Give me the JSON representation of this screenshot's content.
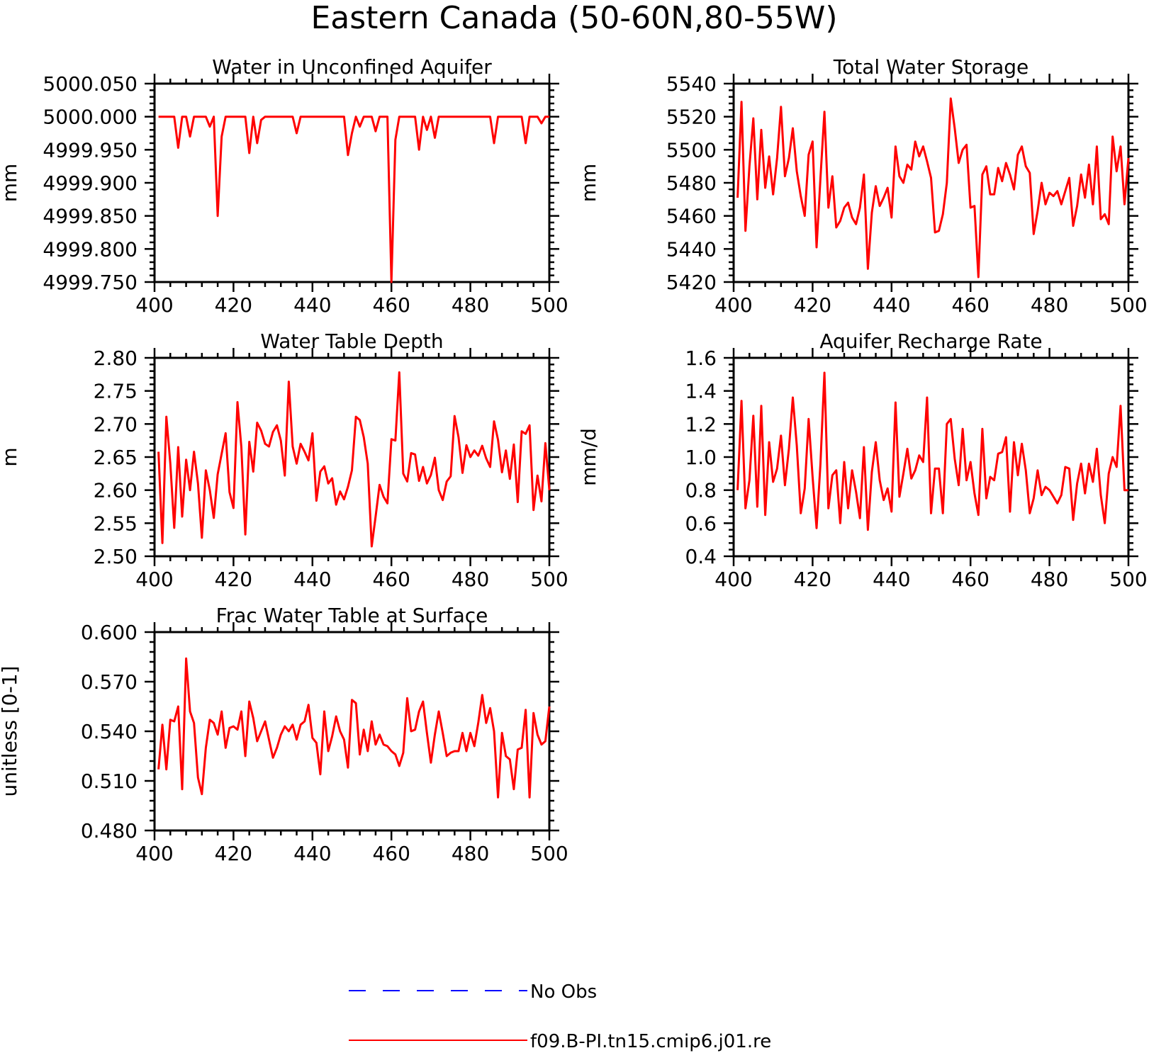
{
  "figure": {
    "title": "Eastern Canada (50-60N,80-55W)"
  },
  "legend": {
    "entries": [
      {
        "label": "No Obs",
        "color": "#0000ff",
        "style": "dashed"
      },
      {
        "label": "f09.B-PI.tn15.cmip6.j01.re",
        "color": "#ff0000",
        "style": "solid"
      }
    ]
  },
  "chart_data": [
    {
      "type": "line",
      "title": "Water in Unconfined Aquifer",
      "xlabel": "",
      "ylabel": "mm",
      "xlim": [
        400,
        500
      ],
      "ylim": [
        4999.75,
        5000.05
      ],
      "xticks": [
        "400",
        "420",
        "440",
        "460",
        "480",
        "500"
      ],
      "yticks": [
        "4999.750",
        "4999.800",
        "4999.850",
        "4999.900",
        "4999.950",
        "5000.000",
        "5000.050"
      ],
      "color": "#ff0000",
      "series": [
        {
          "x_start": 401,
          "values": [
            5000,
            5000,
            5000,
            5000,
            5000,
            4999.953,
            5000,
            5000,
            4999.97,
            5000,
            5000,
            5000,
            5000,
            4999.985,
            5000,
            4999.85,
            4999.97,
            5000,
            5000,
            5000,
            5000,
            5000,
            5000,
            4999.945,
            5000,
            4999.96,
            4999.995,
            5000,
            5000,
            5000,
            5000,
            5000,
            5000,
            5000,
            5000,
            4999.975,
            5000,
            5000,
            5000,
            5000,
            5000,
            5000,
            5000,
            5000,
            5000,
            5000,
            5000,
            5000,
            4999.942,
            4999.975,
            5000,
            4999.985,
            5000,
            5000,
            5000,
            4999.978,
            5000,
            5000,
            5000,
            4999.75,
            4999.965,
            5000,
            5000,
            5000,
            5000,
            5000,
            4999.95,
            5000,
            4999.98,
            5000,
            4999.968,
            5000,
            5000,
            5000,
            5000,
            5000,
            5000,
            5000,
            5000,
            5000,
            5000,
            5000,
            5000,
            5000,
            5000,
            4999.96,
            5000,
            5000,
            5000,
            5000,
            5000,
            5000,
            5000,
            4999.96,
            5000,
            5000,
            5000,
            4999.99,
            5000,
            5000
          ]
        }
      ]
    },
    {
      "type": "line",
      "title": "Total Water Storage",
      "xlabel": "",
      "ylabel": "mm",
      "xlim": [
        400,
        500
      ],
      "ylim": [
        5420,
        5540
      ],
      "xticks": [
        "400",
        "420",
        "440",
        "460",
        "480",
        "500"
      ],
      "yticks": [
        "5420",
        "5440",
        "5460",
        "5480",
        "5500",
        "5520",
        "5540"
      ],
      "color": "#ff0000",
      "series": [
        {
          "x_start": 401,
          "values": [
            5471,
            5529,
            5451,
            5490,
            5519,
            5470,
            5512,
            5477,
            5496,
            5473,
            5495,
            5526,
            5484,
            5495,
            5513,
            5487,
            5472,
            5460,
            5497,
            5505,
            5441,
            5483,
            5523,
            5465,
            5484,
            5453,
            5457,
            5465,
            5468,
            5459,
            5455,
            5465,
            5485,
            5428,
            5462,
            5478,
            5466,
            5471,
            5477,
            5459,
            5502,
            5484,
            5480,
            5491,
            5488,
            5505,
            5496,
            5502,
            5493,
            5483,
            5450,
            5451,
            5461,
            5480,
            5531,
            5513,
            5492,
            5500,
            5503,
            5465,
            5466,
            5423,
            5485,
            5490,
            5473,
            5473,
            5489,
            5481,
            5492,
            5485,
            5476,
            5497,
            5502,
            5490,
            5486,
            5449,
            5463,
            5480,
            5467,
            5474,
            5472,
            5475,
            5467,
            5475,
            5483,
            5454,
            5466,
            5485,
            5471,
            5491,
            5467,
            5502,
            5458,
            5461,
            5455,
            5508,
            5487,
            5502,
            5467,
            5495
          ]
        }
      ]
    },
    {
      "type": "line",
      "title": "Water Table Depth",
      "xlabel": "",
      "ylabel": "m",
      "xlim": [
        400,
        500
      ],
      "ylim": [
        2.5,
        2.8
      ],
      "xticks": [
        "400",
        "420",
        "440",
        "460",
        "480",
        "500"
      ],
      "yticks": [
        "2.50",
        "2.55",
        "2.60",
        "2.65",
        "2.70",
        "2.75",
        "2.80"
      ],
      "color": "#ff0000",
      "series": [
        {
          "x_start": 401,
          "values": [
            2.658,
            2.52,
            2.711,
            2.64,
            2.543,
            2.665,
            2.56,
            2.646,
            2.6,
            2.658,
            2.61,
            2.528,
            2.63,
            2.6,
            2.558,
            2.624,
            2.655,
            2.686,
            2.597,
            2.573,
            2.733,
            2.665,
            2.533,
            2.673,
            2.628,
            2.702,
            2.69,
            2.67,
            2.666,
            2.688,
            2.698,
            2.675,
            2.622,
            2.764,
            2.666,
            2.64,
            2.67,
            2.658,
            2.645,
            2.686,
            2.584,
            2.628,
            2.636,
            2.61,
            2.618,
            2.578,
            2.598,
            2.586,
            2.605,
            2.63,
            2.711,
            2.706,
            2.68,
            2.64,
            2.515,
            2.56,
            2.608,
            2.59,
            2.58,
            2.677,
            2.675,
            2.778,
            2.625,
            2.613,
            2.656,
            2.654,
            2.614,
            2.635,
            2.61,
            2.623,
            2.649,
            2.6,
            2.585,
            2.613,
            2.621,
            2.712,
            2.68,
            2.626,
            2.668,
            2.65,
            2.66,
            2.652,
            2.667,
            2.648,
            2.635,
            2.704,
            2.676,
            2.627,
            2.66,
            2.617,
            2.669,
            2.582,
            2.689,
            2.685,
            2.698,
            2.57,
            2.622,
            2.583,
            2.671,
            2.6
          ]
        }
      ]
    },
    {
      "type": "line",
      "title": "Aquifer Recharge Rate",
      "xlabel": "",
      "ylabel": "mm/d",
      "xlim": [
        400,
        500
      ],
      "ylim": [
        0.4,
        1.6
      ],
      "xticks": [
        "400",
        "420",
        "440",
        "460",
        "480",
        "500"
      ],
      "yticks": [
        "0.4",
        "0.6",
        "0.8",
        "1.0",
        "1.2",
        "1.4",
        "1.6"
      ],
      "color": "#ff0000",
      "series": [
        {
          "x_start": 401,
          "values": [
            0.8,
            1.34,
            0.69,
            0.86,
            1.25,
            0.7,
            1.31,
            0.65,
            1.09,
            0.85,
            0.93,
            1.13,
            0.83,
            1.05,
            1.36,
            1.07,
            0.66,
            0.81,
            1.23,
            0.88,
            0.57,
            0.96,
            1.51,
            0.69,
            0.89,
            0.92,
            0.6,
            0.97,
            0.69,
            0.92,
            0.79,
            0.63,
            1.06,
            0.56,
            0.91,
            1.09,
            0.86,
            0.74,
            0.81,
            0.67,
            1.33,
            0.76,
            0.9,
            1.05,
            0.87,
            0.92,
            1.01,
            0.97,
            1.36,
            0.66,
            0.93,
            0.93,
            0.66,
            1.2,
            1.23,
            0.99,
            0.83,
            1.17,
            0.86,
            0.97,
            0.78,
            0.65,
            1.17,
            0.75,
            0.88,
            0.86,
            1.02,
            1.03,
            1.12,
            0.67,
            1.09,
            0.89,
            1.08,
            0.92,
            0.66,
            0.75,
            0.92,
            0.77,
            0.82,
            0.8,
            0.76,
            0.72,
            0.77,
            0.94,
            0.93,
            0.62,
            0.84,
            0.96,
            0.78,
            0.96,
            0.85,
            1.05,
            0.77,
            0.6,
            0.9,
            1.0,
            0.94,
            1.31,
            0.8,
            0.8
          ]
        }
      ]
    },
    {
      "type": "line",
      "title": "Frac Water Table at Surface",
      "xlabel": "",
      "ylabel": "unitless [0-1]",
      "xlim": [
        400,
        500
      ],
      "ylim": [
        0.48,
        0.6
      ],
      "xticks": [
        "400",
        "420",
        "440",
        "460",
        "480",
        "500"
      ],
      "yticks": [
        "0.480",
        "0.510",
        "0.540",
        "0.570",
        "0.600"
      ],
      "color": "#ff0000",
      "series": [
        {
          "x_start": 401,
          "values": [
            0.517,
            0.544,
            0.517,
            0.547,
            0.546,
            0.555,
            0.505,
            0.584,
            0.552,
            0.545,
            0.512,
            0.502,
            0.53,
            0.547,
            0.545,
            0.538,
            0.552,
            0.53,
            0.542,
            0.543,
            0.541,
            0.552,
            0.525,
            0.558,
            0.548,
            0.534,
            0.54,
            0.546,
            0.535,
            0.524,
            0.53,
            0.538,
            0.543,
            0.54,
            0.544,
            0.535,
            0.544,
            0.546,
            0.556,
            0.536,
            0.533,
            0.514,
            0.552,
            0.528,
            0.537,
            0.549,
            0.54,
            0.535,
            0.518,
            0.559,
            0.557,
            0.526,
            0.541,
            0.528,
            0.546,
            0.532,
            0.538,
            0.532,
            0.531,
            0.528,
            0.526,
            0.519,
            0.527,
            0.56,
            0.54,
            0.541,
            0.552,
            0.558,
            0.539,
            0.521,
            0.538,
            0.552,
            0.539,
            0.525,
            0.527,
            0.528,
            0.528,
            0.539,
            0.528,
            0.539,
            0.531,
            0.545,
            0.562,
            0.545,
            0.554,
            0.54,
            0.5,
            0.539,
            0.525,
            0.523,
            0.505,
            0.529,
            0.53,
            0.553,
            0.5,
            0.551,
            0.538,
            0.532,
            0.534,
            0.555
          ]
        }
      ]
    }
  ]
}
